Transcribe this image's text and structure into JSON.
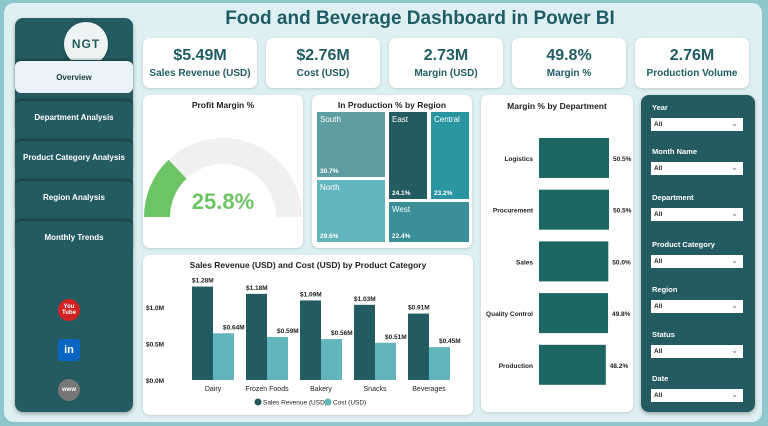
{
  "title": "Food and Beverage Dashboard in Power BI",
  "logo": "NGT",
  "nav": [
    {
      "label": "Overview",
      "active": true
    },
    {
      "label": "Department Analysis"
    },
    {
      "label": "Product Category Analysis"
    },
    {
      "label": "Region Analysis"
    },
    {
      "label": "Monthly Trends"
    }
  ],
  "social": [
    {
      "icon": "youtube-icon",
      "label": "You Tube",
      "color": "#d32020"
    },
    {
      "icon": "linkedin-icon",
      "label": "in",
      "color": "#0a66c2"
    },
    {
      "icon": "globe-icon",
      "label": "www",
      "color": "#777777"
    }
  ],
  "kpis": [
    {
      "value": "$5.49M",
      "label": "Sales Revenue (USD)"
    },
    {
      "value": "$2.76M",
      "label": "Cost (USD)"
    },
    {
      "value": "2.73M",
      "label": "Margin (USD)"
    },
    {
      "value": "49.8%",
      "label": "Margin %"
    },
    {
      "value": "2.76M",
      "label": "Production Volume"
    }
  ],
  "gauge": {
    "title": "Profit Margin %",
    "value": 25.8,
    "value_label": "25.8%",
    "min": 0,
    "max": 100,
    "color": "#6cc565"
  },
  "treemap": {
    "title": "In Production % by Region",
    "items": [
      {
        "name": "South",
        "pct": "30.7%",
        "color": "#5e9ea3"
      },
      {
        "name": "North",
        "pct": "29.6%",
        "color": "#62b4bd"
      },
      {
        "name": "East",
        "pct": "24.1%",
        "color": "#245b61"
      },
      {
        "name": "Central",
        "pct": "23.2%",
        "color": "#2996a2"
      },
      {
        "name": "West",
        "pct": "22.4%",
        "color": "#3a8f98"
      }
    ]
  },
  "chart_data": [
    {
      "type": "bar",
      "title": "Margin % by Department",
      "orientation": "horizontal",
      "categories": [
        "Logistics",
        "Procurement",
        "Sales",
        "Quality Control",
        "Production"
      ],
      "values": [
        50.5,
        50.5,
        50.0,
        49.8,
        48.2
      ],
      "labels": [
        "50.5%",
        "50.5%",
        "50.0%",
        "49.8%",
        "48.2%"
      ],
      "color": "#1e6662"
    },
    {
      "type": "bar",
      "title": "Sales Revenue (USD) and Cost (USD) by Product Category",
      "categories": [
        "Dairy",
        "Frozen Foods",
        "Bakery",
        "Snacks",
        "Beverages"
      ],
      "series": [
        {
          "name": "Sales Revenue (USD)",
          "values": [
            1.28,
            1.18,
            1.09,
            1.03,
            0.91
          ],
          "labels": [
            "$1.28M",
            "$1.18M",
            "$1.09M",
            "$1.03M",
            "$0.91M"
          ],
          "color": "#245b61"
        },
        {
          "name": "Cost (USD)",
          "values": [
            0.64,
            0.59,
            0.56,
            0.51,
            0.45
          ],
          "labels": [
            "$0.64M",
            "$0.59M",
            "$0.56M",
            "$0.51M",
            "$0.45M"
          ],
          "color": "#62b4bd"
        }
      ],
      "yticks": [
        "$0.0M",
        "$0.5M",
        "$1.0M"
      ],
      "ylim": [
        0,
        1.4
      ],
      "legend": "bottom"
    }
  ],
  "filters": [
    {
      "label": "Year",
      "value": "All"
    },
    {
      "label": "Month Name",
      "value": "All"
    },
    {
      "label": "Department",
      "value": "All"
    },
    {
      "label": "Product Category",
      "value": "All"
    },
    {
      "label": "Region",
      "value": "All"
    },
    {
      "label": "Status",
      "value": "All"
    },
    {
      "label": "Date",
      "value": "All"
    }
  ]
}
